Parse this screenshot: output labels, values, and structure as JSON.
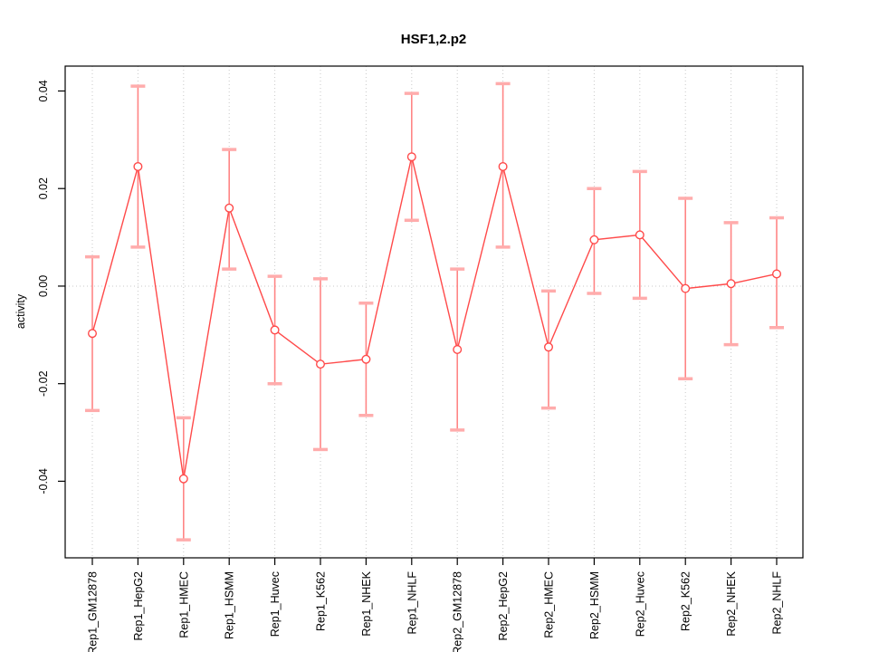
{
  "chart_data": {
    "type": "line",
    "title": "HSF1,2.p2",
    "ylabel": "activity",
    "xlabel": "",
    "legend": "none",
    "categories": [
      "Rep1_GM12878",
      "Rep1_HepG2",
      "Rep1_HMEC",
      "Rep1_HSMM",
      "Rep1_Huvec",
      "Rep1_K562",
      "Rep1_NHEK",
      "Rep1_NHLF",
      "Rep2_GM12878",
      "Rep2_HepG2",
      "Rep2_HMEC",
      "Rep2_HSMM",
      "Rep2_Huvec",
      "Rep2_K562",
      "Rep2_NHEK",
      "Rep2_NHLF"
    ],
    "series": [
      {
        "name": "activity",
        "values": [
          -0.0097,
          0.0245,
          -0.0395,
          0.016,
          -0.009,
          -0.016,
          -0.015,
          0.0265,
          -0.013,
          0.0245,
          -0.0125,
          0.0095,
          0.0105,
          -0.0005,
          0.0005,
          0.0025
        ],
        "error_high": [
          0.006,
          0.041,
          -0.027,
          0.028,
          0.002,
          0.0015,
          -0.0035,
          0.0395,
          0.0035,
          0.0415,
          -0.001,
          0.02,
          0.0235,
          0.018,
          0.013,
          0.014
        ],
        "error_low": [
          -0.0255,
          0.008,
          -0.052,
          0.0035,
          -0.02,
          -0.0335,
          -0.0265,
          0.0135,
          -0.0295,
          0.008,
          -0.025,
          -0.0015,
          -0.0025,
          -0.019,
          -0.012,
          -0.0085
        ]
      }
    ],
    "yticks": [
      -0.04,
      -0.02,
      0,
      0.02,
      0.04
    ],
    "ytick_labels": [
      "-0.04",
      "-0.02",
      "0.00",
      "0.02",
      "0.04"
    ],
    "ylim": [
      -0.0557,
      0.0451
    ],
    "grid": {
      "vertical_at_categories": true,
      "horizontal_at_zero": true,
      "style": "dotted"
    },
    "colors": {
      "series_line": "#ff4a4a",
      "error_bar": "#ff8585",
      "error_cap": "#ffacac",
      "point_stroke": "#ff4a4a",
      "grid": "#c9c9c9",
      "axis": "#000000"
    }
  }
}
